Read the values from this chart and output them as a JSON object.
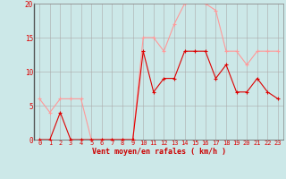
{
  "title": "",
  "xlabel": "Vent moyen/en rafales ( km/h )",
  "xlabel_color": "#cc0000",
  "background_color": "#cce8e8",
  "grid_color": "#aaaaaa",
  "hours": [
    0,
    1,
    2,
    3,
    4,
    5,
    6,
    7,
    8,
    9,
    10,
    11,
    12,
    13,
    14,
    15,
    16,
    17,
    18,
    19,
    20,
    21,
    22,
    23
  ],
  "vent_moyen": [
    0,
    0,
    4,
    0,
    0,
    0,
    0,
    0,
    0,
    0,
    13,
    7,
    9,
    9,
    13,
    13,
    13,
    9,
    11,
    7,
    7,
    9,
    7,
    6
  ],
  "vent_rafales": [
    6,
    4,
    6,
    6,
    6,
    0,
    0,
    0,
    0,
    0,
    15,
    15,
    13,
    17,
    20,
    21,
    20,
    19,
    13,
    13,
    11,
    13,
    13,
    13
  ],
  "moyen_color": "#dd0000",
  "rafales_color": "#ff9999",
  "ylim": [
    0,
    20
  ],
  "yticks": [
    0,
    5,
    10,
    15,
    20
  ],
  "xticks": [
    0,
    1,
    2,
    3,
    4,
    5,
    6,
    7,
    8,
    9,
    10,
    11,
    12,
    13,
    14,
    15,
    16,
    17,
    18,
    19,
    20,
    21,
    22,
    23
  ]
}
